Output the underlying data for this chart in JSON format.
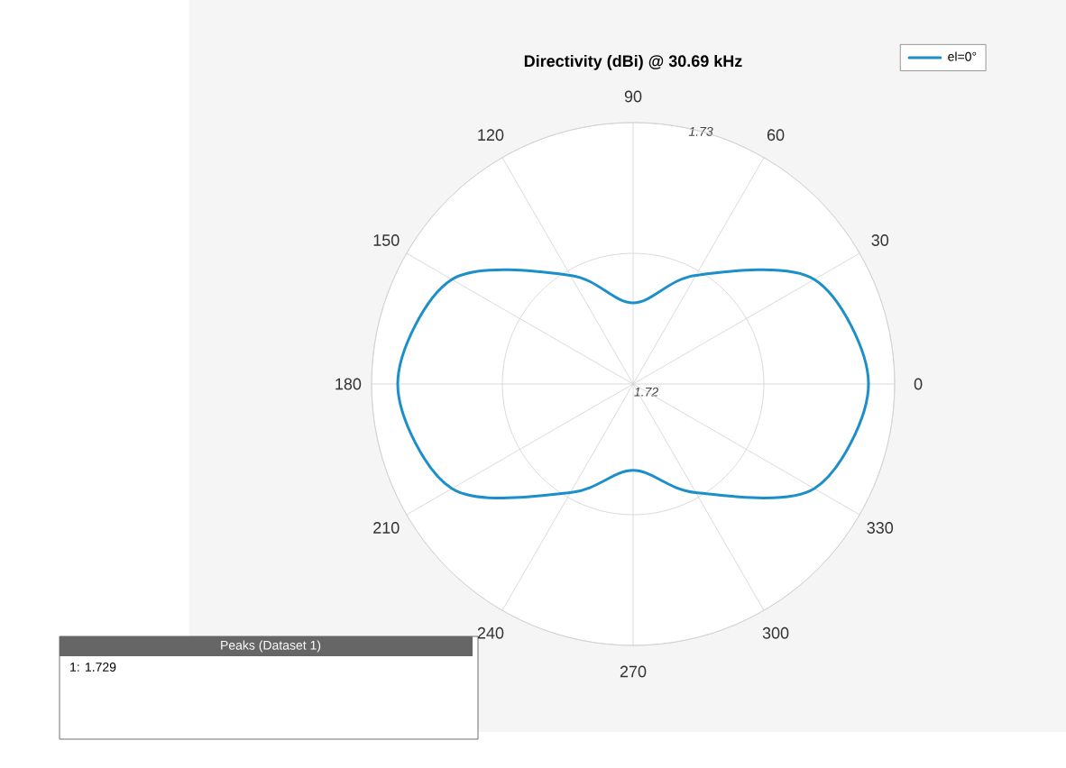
{
  "chart_data": {
    "type": "radar",
    "title": "Directivity (dBi) @ 30.69 kHz",
    "categories": [
      "90",
      "60",
      "30",
      "0",
      "330",
      "300",
      "270",
      "240",
      "210",
      "180",
      "150",
      "120"
    ],
    "series": [
      {
        "name": "el=0°",
        "color": "#1a8fc9",
        "values": [
          1.7231,
          1.7248,
          1.728,
          1.729,
          1.728,
          1.7248,
          1.7233,
          1.7248,
          1.728,
          1.729,
          1.728,
          1.7248
        ]
      }
    ],
    "ylim": [
      1.72,
      1.73
    ],
    "yticks": [
      1.72,
      1.73
    ],
    "grid": true,
    "legend": "top right",
    "annotations": [
      "Peaks (Dataset 1)",
      "1: 1.729"
    ]
  }
}
